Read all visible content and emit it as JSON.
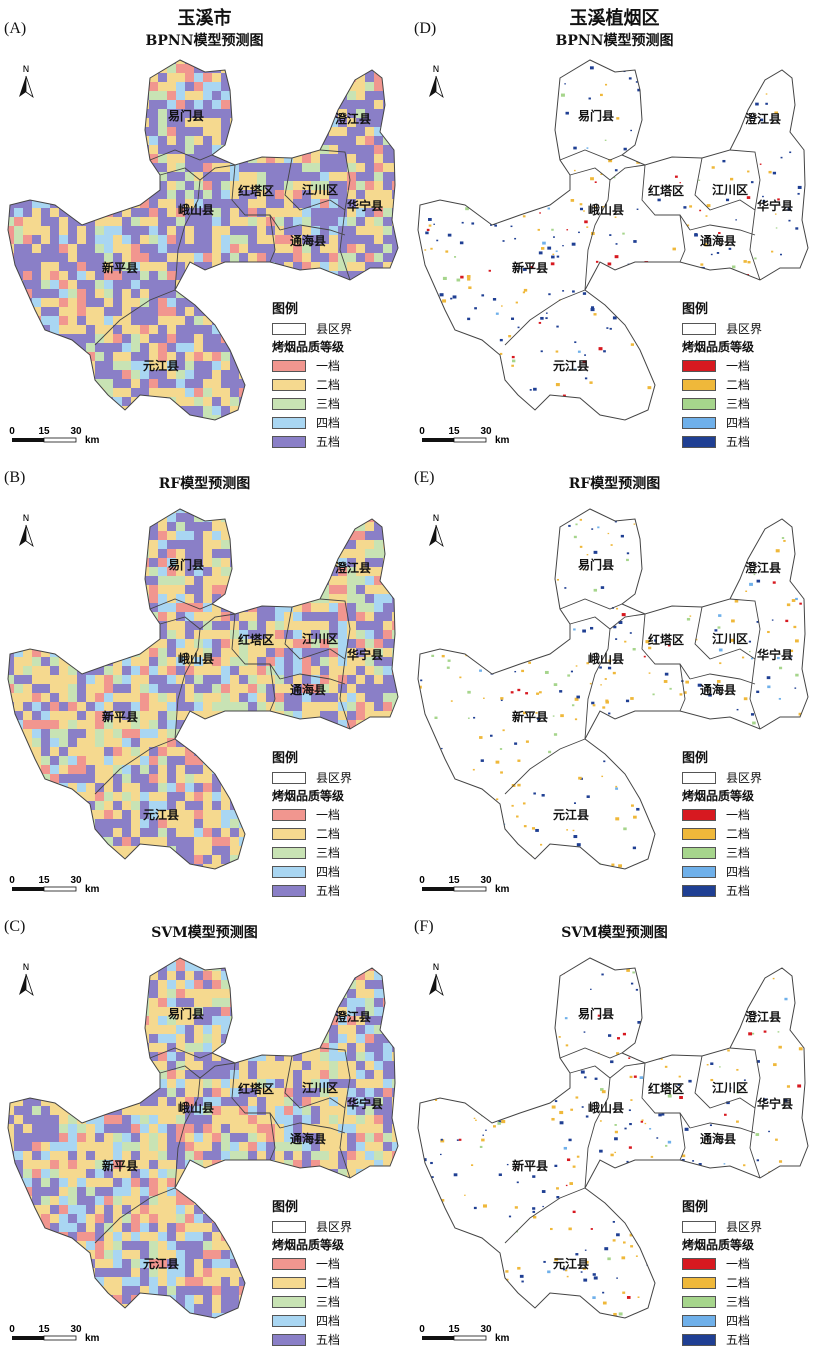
{
  "colors": {
    "left": [
      "#f1968f",
      "#f5d98f",
      "#c8e3b4",
      "#a9d6f2",
      "#8a7fc7"
    ],
    "right": [
      "#d71920",
      "#efb83a",
      "#a6d58c",
      "#6fb0ea",
      "#1f3f93"
    ]
  },
  "legend": {
    "title": "图例",
    "boundary": "县区界",
    "quality_title": "烤烟品质等级",
    "grades": [
      "一档",
      "二档",
      "三档",
      "四档",
      "五档"
    ]
  },
  "scale": {
    "ticks": [
      "0",
      "15",
      "30"
    ],
    "unit": "km"
  },
  "north": "N",
  "counties": [
    "易门县",
    "澄江县",
    "红塔区",
    "江川区",
    "华宁县",
    "峨山县",
    "通海县",
    "新平县",
    "元江县"
  ],
  "panels": [
    {
      "id": "A",
      "label": "(A)",
      "title1": "玉溪市",
      "title2": "BPNN模型预测图",
      "style": "left",
      "grade_mix": [
        0.1,
        0.25,
        0.1,
        0.1,
        0.45
      ]
    },
    {
      "id": "D",
      "label": "(D)",
      "title1": "玉溪植烟区",
      "title2": "BPNN模型预测图",
      "style": "right",
      "grade_mix": [
        0.1,
        0.3,
        0.05,
        0.05,
        0.5
      ]
    },
    {
      "id": "B",
      "label": "(B)",
      "title1": "",
      "title2": "RF模型预测图",
      "style": "left",
      "grade_mix": [
        0.1,
        0.35,
        0.15,
        0.1,
        0.3
      ]
    },
    {
      "id": "E",
      "label": "(E)",
      "title1": "",
      "title2": "RF模型预测图",
      "style": "right",
      "grade_mix": [
        0.05,
        0.45,
        0.15,
        0.05,
        0.3
      ]
    },
    {
      "id": "C",
      "label": "(C)",
      "title1": "",
      "title2": "SVM模型预测图",
      "style": "left",
      "grade_mix": [
        0.1,
        0.35,
        0.1,
        0.15,
        0.3
      ]
    },
    {
      "id": "F",
      "label": "(F)",
      "title1": "",
      "title2": "SVM模型预测图",
      "style": "right",
      "grade_mix": [
        0.1,
        0.35,
        0.1,
        0.05,
        0.4
      ]
    }
  ]
}
